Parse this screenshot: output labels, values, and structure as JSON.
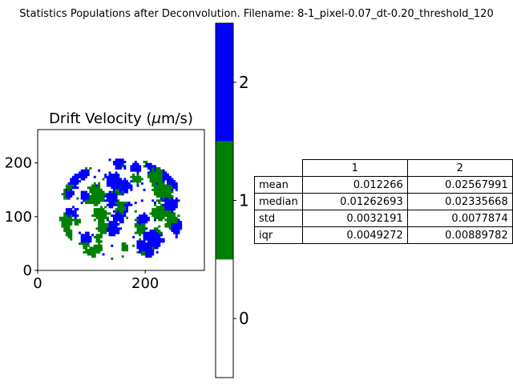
{
  "figure": {
    "suptitle": "Statistics Populations after Deconvolution. Filename: 8-1_pixel-0.07_dt-0.20_threshold_120"
  },
  "chart_data": [
    {
      "type": "heatmap",
      "title": "Drift Velocity (μm/s)",
      "title_parts": {
        "prefix": "Drift Velocity (",
        "symbol": "μ",
        "suffix": "m/s)"
      },
      "xlim": [
        0,
        310
      ],
      "ylim": [
        0,
        262
      ],
      "x_ticks": [
        0,
        200
      ],
      "y_ticks": [
        0,
        100,
        200
      ],
      "y_inverted": true,
      "classes": [
        {
          "value": 0,
          "color": "#ffffff"
        },
        {
          "value": 1,
          "color": "#008000"
        },
        {
          "value": 2,
          "color": "#0000ff"
        }
      ],
      "ellipse": {
        "cx": 155,
        "cy": 110,
        "rx": 118,
        "ry": 98
      }
    },
    {
      "type": "colorbar",
      "tick_labels": [
        "0",
        "1",
        "2"
      ],
      "colors": [
        "#ffffff",
        "#008000",
        "#0000ff"
      ]
    },
    {
      "type": "table",
      "columns": [
        "1",
        "2"
      ],
      "rows": [
        {
          "label": "mean",
          "values": [
            "0.012266",
            "0.02567991"
          ]
        },
        {
          "label": "median",
          "values": [
            "0.01262693",
            "0.02335668"
          ]
        },
        {
          "label": "std",
          "values": [
            "0.0032191",
            "0.0077874"
          ]
        },
        {
          "label": "iqr",
          "values": [
            "0.0049272",
            "0.00889782"
          ]
        }
      ]
    }
  ]
}
